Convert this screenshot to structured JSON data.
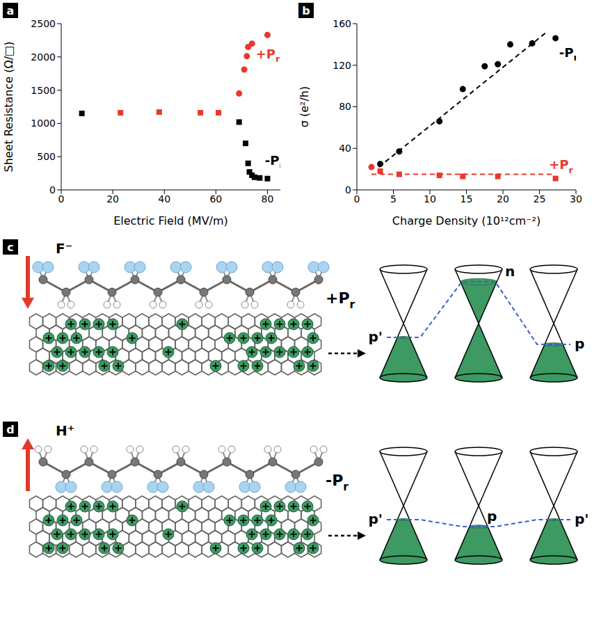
{
  "chart_data": [
    {
      "panel": "a",
      "type": "scatter",
      "x_label": "Electric Field (MV/m)",
      "y_label": "Sheet Resistance (Ω/□)",
      "xlim": [
        0,
        85
      ],
      "xticks": [
        0,
        20,
        40,
        60,
        80
      ],
      "ylim": [
        0,
        2500
      ],
      "yticks": [
        0,
        500,
        1000,
        1500,
        2000,
        2500
      ],
      "series": [
        {
          "color": "#000000",
          "marker": "square",
          "x": [
            8,
            69,
            71.5,
            72.5,
            73,
            74,
            75,
            77,
            80
          ],
          "values": [
            1150,
            1020,
            700,
            400,
            270,
            220,
            190,
            180,
            170
          ]
        },
        {
          "color": "#e8392b",
          "marker": "square",
          "x": [
            23,
            38,
            54,
            61
          ],
          "values": [
            1160,
            1170,
            1160,
            1160
          ]
        },
        {
          "color": "#e8392b",
          "marker": "circle",
          "x": [
            69,
            71,
            72,
            72.5,
            74,
            80
          ],
          "values": [
            1450,
            1810,
            2010,
            2150,
            2200,
            2330
          ]
        }
      ],
      "annotations": [
        {
          "text": "+Pr",
          "x": 75.5,
          "y": 1980,
          "color": "#e8392b"
        },
        {
          "text": "-Pr",
          "x": 79,
          "y": 380,
          "color": "#000000"
        }
      ]
    },
    {
      "panel": "b",
      "type": "scatter",
      "x_label": "Charge Density (10¹²cm⁻²)",
      "y_label": "σ (e²/h)",
      "xlim": [
        0,
        30
      ],
      "xticks": [
        0,
        5,
        10,
        15,
        20,
        25,
        30
      ],
      "ylim": [
        0,
        160
      ],
      "yticks": [
        0,
        40,
        80,
        120,
        160
      ],
      "series": [
        {
          "color": "#000000",
          "marker": "circle",
          "x": [
            3.2,
            5.8,
            11.3,
            14.5,
            17.5,
            19.3,
            21,
            24,
            27.2
          ],
          "values": [
            25,
            37,
            66,
            97,
            119,
            121,
            140,
            141,
            146
          ]
        },
        {
          "color": "#000000",
          "type": "line",
          "line_style": "dashed",
          "x": [
            3,
            26
          ],
          "values": [
            22,
            152
          ]
        },
        {
          "color": "#e8392b",
          "marker": "circle",
          "x": [
            2
          ],
          "values": [
            22
          ]
        },
        {
          "color": "#e8392b",
          "marker": "square",
          "x": [
            3.2,
            5.8,
            11.3,
            14.5,
            19.3,
            27.2
          ],
          "values": [
            18,
            15,
            14,
            13,
            13,
            11
          ]
        },
        {
          "color": "#e8392b",
          "type": "line",
          "line_style": "dashed",
          "x": [
            2,
            27
          ],
          "values": [
            15,
            15
          ]
        }
      ],
      "annotations": [
        {
          "text": "-Pr",
          "x": 27.7,
          "y": 128,
          "color": "#000000"
        },
        {
          "text": "+Pr",
          "x": 26.3,
          "y": 20,
          "color": "#e8392b"
        }
      ]
    }
  ],
  "diagrams": [
    {
      "panel": "c",
      "ion": "F⁻",
      "polarization": "+Pr",
      "regions": [
        "p'",
        "n",
        "p"
      ]
    },
    {
      "panel": "d",
      "ion": "H⁺",
      "polarization": "-Pr",
      "regions": [
        "p'",
        "p",
        "p'"
      ]
    }
  ]
}
